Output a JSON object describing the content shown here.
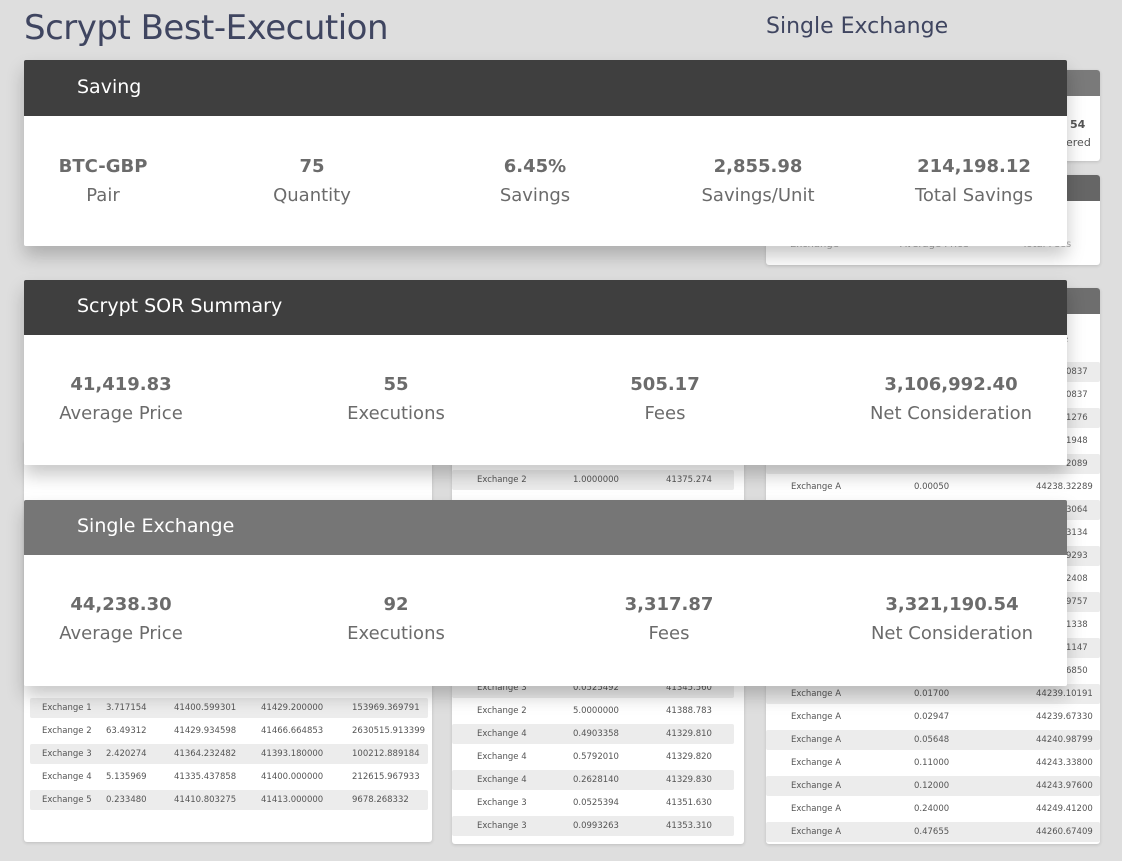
{
  "header": {
    "title": "Scrypt Best-Execution",
    "subtitle": "Single Exchange"
  },
  "saving_card": {
    "title": "Saving",
    "metrics": [
      {
        "value": "BTC-GBP",
        "label": "Pair"
      },
      {
        "value": "75",
        "label": "Quantity"
      },
      {
        "value": "6.45%",
        "label": "Savings"
      },
      {
        "value": "2,855.98",
        "label": "Savings/Unit"
      },
      {
        "value": "214,198.12",
        "label": "Total Savings"
      }
    ]
  },
  "sor_card": {
    "title": "Scrypt SOR Summary",
    "metrics": [
      {
        "value": "41,419.83",
        "label": "Average Price"
      },
      {
        "value": "55",
        "label": "Executions"
      },
      {
        "value": "505.17",
        "label": "Fees"
      },
      {
        "value": "3,106,992.40",
        "label": "Net Consideration"
      }
    ]
  },
  "single_card": {
    "title": "Single Exchange",
    "metrics": [
      {
        "value": "44,238.30",
        "label": "Average Price"
      },
      {
        "value": "92",
        "label": "Executions"
      },
      {
        "value": "3,317.87",
        "label": "Fees"
      },
      {
        "value": "3,321,190.54",
        "label": "Net Consideration"
      }
    ]
  },
  "right_panel_peeks": {
    "top_value": "54",
    "top_label": "ered",
    "header_cols": [
      "Exchange",
      "Average Price",
      "Total Fees"
    ],
    "col_fragment": "e"
  },
  "left_table": {
    "rows": [
      [
        "Exchange 1",
        "3.717154",
        "41400.599301",
        "41429.200000",
        "153969.369791"
      ],
      [
        "Exchange 2",
        "63.49312",
        "41429.934598",
        "41466.664853",
        "2630515.913399"
      ],
      [
        "Exchange 3",
        "2.420274",
        "41364.232482",
        "41393.180000",
        "100212.889184"
      ],
      [
        "Exchange 4",
        "5.135969",
        "41335.437858",
        "41400.000000",
        "212615.967933"
      ],
      [
        "Exchange 5",
        "0.233480",
        "41410.803275",
        "41413.000000",
        "9678.268332"
      ]
    ]
  },
  "middle_table": {
    "top_row": [
      "Exchange 2",
      "1.0000000",
      "41375.274"
    ],
    "partial_row": [
      "Exchange 3",
      "0.0525492",
      "41345.560"
    ],
    "rows": [
      [
        "Exchange 2",
        "5.0000000",
        "41388.783"
      ],
      [
        "Exchange 4",
        "0.4903358",
        "41329.810"
      ],
      [
        "Exchange 4",
        "0.5792010",
        "41329.820"
      ],
      [
        "Exchange 4",
        "0.2628140",
        "41329.830"
      ],
      [
        "Exchange 3",
        "0.0525394",
        "41351.630"
      ],
      [
        "Exchange 3",
        "0.0993263",
        "41353.310"
      ]
    ]
  },
  "right_table": {
    "top_fragments": [
      "0837",
      "0837",
      "1276",
      "1948",
      "2089"
    ],
    "row_a": [
      "Exchange A",
      "0.00050",
      "44238.32289"
    ],
    "mid_fragments": [
      "3064",
      "3134",
      "9293",
      "2408",
      "9757",
      "1338",
      "1147",
      "6850"
    ],
    "rows": [
      [
        "Exchange A",
        "0.01700",
        "44239.10191"
      ],
      [
        "Exchange A",
        "0.02947",
        "44239.67330"
      ],
      [
        "Exchange A",
        "0.05648",
        "44240.98799"
      ],
      [
        "Exchange A",
        "0.11000",
        "44243.33800"
      ],
      [
        "Exchange A",
        "0.12000",
        "44243.97600"
      ],
      [
        "Exchange A",
        "0.24000",
        "44249.41200"
      ],
      [
        "Exchange A",
        "0.47655",
        "44260.67409"
      ]
    ]
  }
}
